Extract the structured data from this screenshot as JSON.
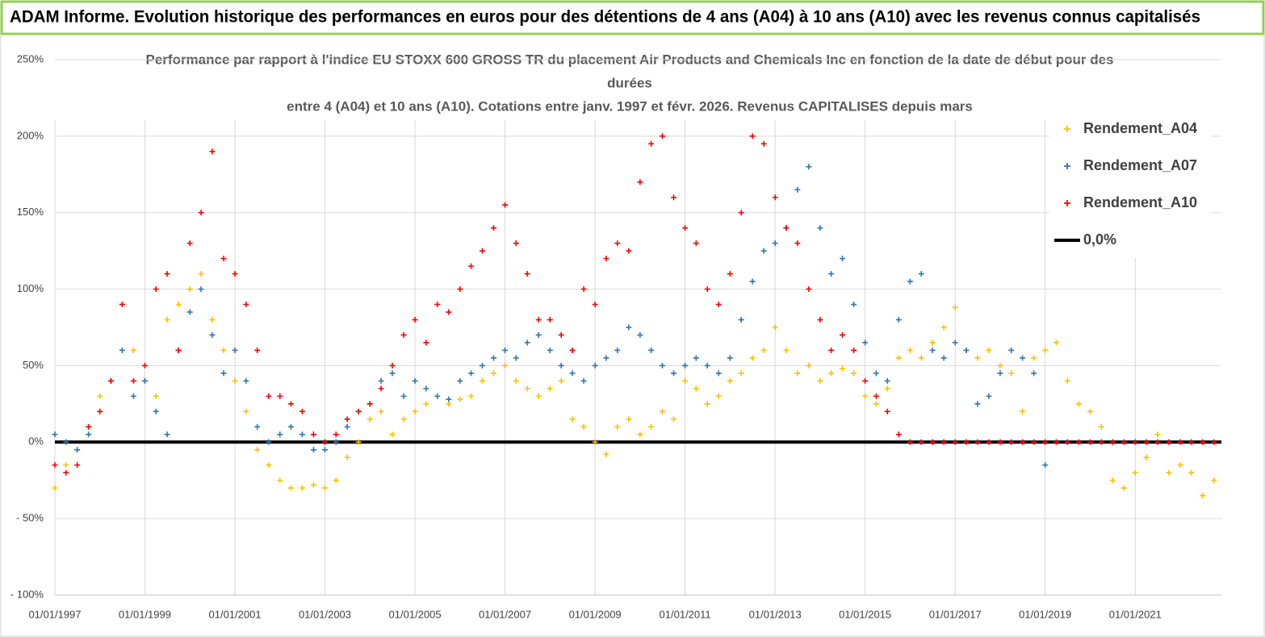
{
  "header": {
    "title": "ADAM Informe. Evolution historique des performances en euros pour des détentions de 4 ans (A04) à 10 ans (A10) avec les revenus connus capitalisés"
  },
  "chart_data": {
    "type": "scatter",
    "title_lines": [
      "Performance par rapport à l'indice EU STOXX 600 GROSS TR  du placement Air Products and Chemicals Inc en fonction de la date de début pour des",
      "durées",
      "entre 4 (A04) et 10 ans (A10). Cotations entre janv. 1997 et févr. 2026. Revenus CAPITALISES depuis mars"
    ],
    "xlim": [
      "1997-01-01",
      "2022-12-01"
    ],
    "xticks": [
      {
        "value": "1997-01-01",
        "label": "01/01/1997"
      },
      {
        "value": "1999-01-01",
        "label": "01/01/1999"
      },
      {
        "value": "2001-01-01",
        "label": "01/01/2001"
      },
      {
        "value": "2003-01-01",
        "label": "01/01/2003"
      },
      {
        "value": "2005-01-01",
        "label": "01/01/2005"
      },
      {
        "value": "2007-01-01",
        "label": "01/01/2007"
      },
      {
        "value": "2009-01-01",
        "label": "01/01/2009"
      },
      {
        "value": "2011-01-01",
        "label": "01/01/2011"
      },
      {
        "value": "2013-01-01",
        "label": "01/01/2013"
      },
      {
        "value": "2015-01-01",
        "label": "01/01/2015"
      },
      {
        "value": "2017-01-01",
        "label": "01/01/2017"
      },
      {
        "value": "2019-01-01",
        "label": "01/01/2019"
      },
      {
        "value": "2021-01-01",
        "label": "01/01/2021"
      }
    ],
    "ylim": [
      -100,
      250
    ],
    "yticks": [
      {
        "value": -100,
        "label": "- 100%"
      },
      {
        "value": -50,
        "label": "- 50%"
      },
      {
        "value": 0,
        "label": "0%"
      },
      {
        "value": 50,
        "label": "50%"
      },
      {
        "value": 100,
        "label": "100%"
      },
      {
        "value": 150,
        "label": "150%"
      },
      {
        "value": 200,
        "label": "200%"
      },
      {
        "value": 250,
        "label": "250%"
      }
    ],
    "grid": true,
    "legend": "right",
    "x": [
      "1997-01-01",
      "1997-04-01",
      "1997-07-01",
      "1997-10-01",
      "1998-01-01",
      "1998-04-01",
      "1998-07-01",
      "1998-10-01",
      "1999-01-01",
      "1999-04-01",
      "1999-07-01",
      "1999-10-01",
      "2000-01-01",
      "2000-04-01",
      "2000-07-01",
      "2000-10-01",
      "2001-01-01",
      "2001-04-01",
      "2001-07-01",
      "2001-10-01",
      "2002-01-01",
      "2002-04-01",
      "2002-07-01",
      "2002-10-01",
      "2003-01-01",
      "2003-04-01",
      "2003-07-01",
      "2003-10-01",
      "2004-01-01",
      "2004-04-01",
      "2004-07-01",
      "2004-10-01",
      "2005-01-01",
      "2005-04-01",
      "2005-07-01",
      "2005-10-01",
      "2006-01-01",
      "2006-04-01",
      "2006-07-01",
      "2006-10-01",
      "2007-01-01",
      "2007-04-01",
      "2007-07-01",
      "2007-10-01",
      "2008-01-01",
      "2008-04-01",
      "2008-07-01",
      "2008-10-01",
      "2009-01-01",
      "2009-04-01",
      "2009-07-01",
      "2009-10-01",
      "2010-01-01",
      "2010-04-01",
      "2010-07-01",
      "2010-10-01",
      "2011-01-01",
      "2011-04-01",
      "2011-07-01",
      "2011-10-01",
      "2012-01-01",
      "2012-04-01",
      "2012-07-01",
      "2012-10-01",
      "2013-01-01",
      "2013-04-01",
      "2013-07-01",
      "2013-10-01",
      "2014-01-01",
      "2014-04-01",
      "2014-07-01",
      "2014-10-01",
      "2015-01-01",
      "2015-04-01",
      "2015-07-01",
      "2015-10-01",
      "2016-01-01",
      "2016-04-01",
      "2016-07-01",
      "2016-10-01",
      "2017-01-01",
      "2017-04-01",
      "2017-07-01",
      "2017-10-01",
      "2018-01-01",
      "2018-04-01",
      "2018-07-01",
      "2018-10-01",
      "2019-01-01",
      "2019-04-01",
      "2019-07-01",
      "2019-10-01",
      "2020-01-01",
      "2020-04-01",
      "2020-07-01",
      "2020-10-01",
      "2021-01-01",
      "2021-04-01",
      "2021-07-01",
      "2021-10-01",
      "2022-01-01",
      "2022-04-01",
      "2022-07-01",
      "2022-10-01"
    ],
    "series": [
      {
        "name": "Rendement_A04",
        "color": "#ffc000",
        "values": [
          -30,
          -15,
          -5,
          10,
          30,
          40,
          90,
          60,
          40,
          30,
          80,
          90,
          100,
          110,
          80,
          60,
          40,
          20,
          -5,
          -15,
          -25,
          -30,
          -30,
          -28,
          -30,
          -25,
          -10,
          0,
          15,
          20,
          5,
          15,
          20,
          25,
          30,
          25,
          28,
          30,
          40,
          45,
          50,
          40,
          35,
          30,
          35,
          40,
          15,
          10,
          0,
          -8,
          10,
          15,
          5,
          10,
          20,
          15,
          40,
          35,
          25,
          30,
          40,
          45,
          55,
          60,
          75,
          60,
          45,
          50,
          40,
          45,
          48,
          45,
          30,
          25,
          35,
          55,
          60,
          55,
          65,
          75,
          88,
          60,
          55,
          60,
          50,
          45,
          20,
          55,
          60,
          65,
          40,
          25,
          20,
          10,
          -25,
          -30,
          -20,
          -10,
          5,
          -20,
          -15,
          -20,
          -35,
          -25
        ]
      },
      {
        "name": "Rendement_A07",
        "color": "#2e75b6",
        "values": [
          5,
          0,
          -5,
          5,
          20,
          40,
          60,
          30,
          40,
          20,
          5,
          60,
          85,
          100,
          70,
          45,
          60,
          40,
          10,
          0,
          5,
          10,
          5,
          -5,
          -5,
          0,
          10,
          20,
          25,
          40,
          45,
          30,
          40,
          35,
          30,
          28,
          40,
          45,
          50,
          55,
          60,
          55,
          65,
          70,
          60,
          50,
          45,
          40,
          50,
          55,
          60,
          75,
          70,
          60,
          50,
          45,
          50,
          55,
          50,
          45,
          55,
          80,
          105,
          125,
          130,
          140,
          165,
          180,
          140,
          110,
          120,
          90,
          65,
          45,
          40,
          80,
          105,
          110,
          60,
          55,
          65,
          60,
          25,
          30,
          45,
          60,
          55,
          45,
          -15,
          null,
          null,
          null,
          null,
          null,
          null,
          null,
          null,
          null,
          null,
          null,
          null,
          null,
          null,
          null
        ]
      },
      {
        "name": "Rendement_A10",
        "color": "#ff0000",
        "values": [
          -15,
          -20,
          -15,
          10,
          20,
          40,
          90,
          40,
          50,
          100,
          110,
          60,
          130,
          150,
          190,
          120,
          110,
          90,
          60,
          30,
          30,
          25,
          20,
          5,
          0,
          5,
          15,
          20,
          25,
          35,
          50,
          70,
          80,
          65,
          90,
          85,
          100,
          115,
          125,
          140,
          155,
          130,
          110,
          80,
          80,
          70,
          60,
          100,
          90,
          120,
          130,
          125,
          170,
          195,
          200,
          160,
          140,
          130,
          100,
          90,
          110,
          150,
          200,
          195,
          160,
          140,
          130,
          100,
          80,
          60,
          70,
          60,
          40,
          30,
          20,
          5,
          0,
          0,
          0,
          0,
          0,
          0,
          0,
          0,
          0,
          0,
          0,
          0,
          0,
          0,
          0,
          0,
          0,
          0,
          0,
          0,
          0,
          0,
          0,
          0,
          0,
          0,
          0,
          0
        ]
      },
      {
        "name": "0,0%",
        "type": "line",
        "color": "#000000",
        "x": [
          "1997-01-01",
          "2022-12-01"
        ],
        "values": [
          0,
          0
        ]
      }
    ]
  }
}
